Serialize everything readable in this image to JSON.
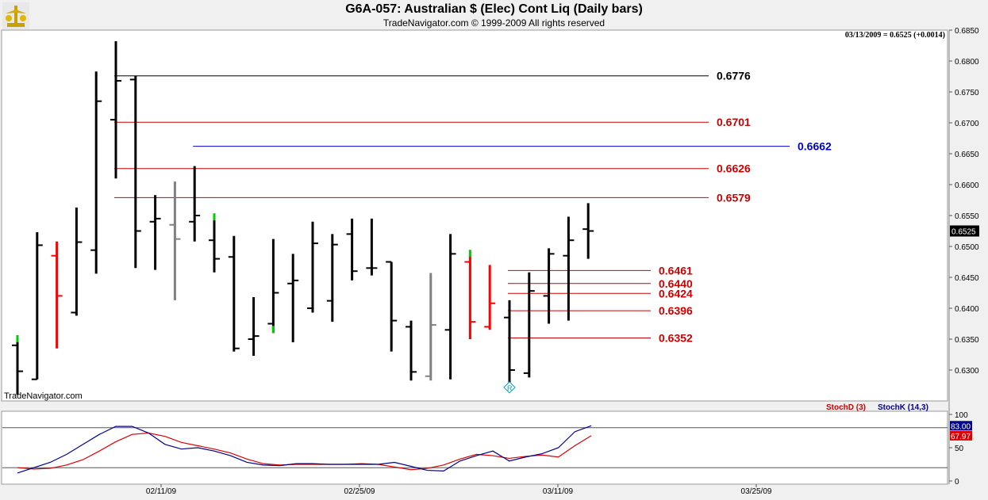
{
  "header": {
    "title": "G6A-057:  Australian $ (Elec) Cont Liq  (Daily bars)",
    "subtitle": "TradeNavigator.com © 1999-2009 All rights reserved",
    "readout": "03/13/2009 = 0.6525 (+0.0014)",
    "watermark": "TradeNavigator.com"
  },
  "chart_data": [
    {
      "type": "ohlc",
      "title": "G6A-057:  Australian $ (Elec) Cont Liq  (Daily bars)",
      "ylim": [
        0.625,
        0.685
      ],
      "yticks": [
        "0.6850",
        "0.6800",
        "0.6750",
        "0.6700",
        "0.6650",
        "0.6600",
        "0.6550",
        "0.6500",
        "0.6450",
        "0.6400",
        "0.6350",
        "0.6300"
      ],
      "xticks": [
        "02/11/09",
        "02/25/09",
        "03/11/09",
        "03/25/09"
      ],
      "last_price_label": "0.6525",
      "colors": {
        "up": "#000000",
        "down_marker": "#00cc00",
        "red": "#ff0000",
        "gray": "#808080",
        "last_bg": "#000000"
      },
      "bars": [
        {
          "o": 0.634,
          "h": 0.6352,
          "l": 0.626,
          "c": 0.6298,
          "color": "#000000"
        },
        {
          "o": 0.6285,
          "h": 0.6523,
          "l": 0.6285,
          "c": 0.6502,
          "color": "#000000"
        },
        {
          "o": 0.6485,
          "h": 0.6508,
          "l": 0.6335,
          "c": 0.642,
          "color": "#ff0000"
        },
        {
          "o": 0.6393,
          "h": 0.6563,
          "l": 0.6388,
          "c": 0.6507,
          "color": "#000000"
        },
        {
          "o": 0.6494,
          "h": 0.6783,
          "l": 0.6456,
          "c": 0.6735,
          "color": "#000000"
        },
        {
          "o": 0.6705,
          "h": 0.6832,
          "l": 0.661,
          "c": 0.6768,
          "color": "#000000"
        },
        {
          "o": 0.677,
          "h": 0.6776,
          "l": 0.6465,
          "c": 0.6525,
          "color": "#000000"
        },
        {
          "o": 0.654,
          "h": 0.6583,
          "l": 0.6462,
          "c": 0.6545,
          "color": "#000000"
        },
        {
          "o": 0.6535,
          "h": 0.6605,
          "l": 0.6413,
          "c": 0.6512,
          "color": "#808080"
        },
        {
          "o": 0.654,
          "h": 0.663,
          "l": 0.6508,
          "c": 0.655,
          "color": "#000000"
        },
        {
          "o": 0.651,
          "h": 0.6552,
          "l": 0.6458,
          "c": 0.648,
          "color": "#000000"
        },
        {
          "o": 0.6483,
          "h": 0.6517,
          "l": 0.633,
          "c": 0.6335,
          "color": "#000000"
        },
        {
          "o": 0.635,
          "h": 0.6418,
          "l": 0.6323,
          "c": 0.6355,
          "color": "#000000"
        },
        {
          "o": 0.6375,
          "h": 0.6512,
          "l": 0.636,
          "c": 0.6425,
          "color": "#000000"
        },
        {
          "o": 0.644,
          "h": 0.6488,
          "l": 0.6345,
          "c": 0.6445,
          "color": "#000000"
        },
        {
          "o": 0.64,
          "h": 0.654,
          "l": 0.6393,
          "c": 0.6505,
          "color": "#000000"
        },
        {
          "o": 0.6412,
          "h": 0.652,
          "l": 0.6378,
          "c": 0.6503,
          "color": "#000000"
        },
        {
          "o": 0.652,
          "h": 0.6545,
          "l": 0.6445,
          "c": 0.646,
          "color": "#000000"
        },
        {
          "o": 0.6465,
          "h": 0.6545,
          "l": 0.6453,
          "c": 0.6465,
          "color": "#000000"
        },
        {
          "o": 0.6475,
          "h": 0.6475,
          "l": 0.633,
          "c": 0.638,
          "color": "#000000"
        },
        {
          "o": 0.637,
          "h": 0.638,
          "l": 0.6283,
          "c": 0.6297,
          "color": "#000000"
        },
        {
          "o": 0.629,
          "h": 0.6457,
          "l": 0.6283,
          "c": 0.6373,
          "color": "#808080"
        },
        {
          "o": 0.6365,
          "h": 0.652,
          "l": 0.6285,
          "c": 0.6488,
          "color": "#000000"
        },
        {
          "o": 0.6475,
          "h": 0.6485,
          "l": 0.635,
          "c": 0.6378,
          "color": "#ff0000"
        },
        {
          "o": 0.637,
          "h": 0.647,
          "l": 0.6365,
          "c": 0.6408,
          "color": "#ff0000"
        },
        {
          "o": 0.6385,
          "h": 0.6413,
          "l": 0.6278,
          "c": 0.63,
          "color": "#000000"
        },
        {
          "o": 0.6295,
          "h": 0.6458,
          "l": 0.6288,
          "c": 0.6428,
          "color": "#000000"
        },
        {
          "o": 0.642,
          "h": 0.6497,
          "l": 0.6375,
          "c": 0.6488,
          "color": "#000000"
        },
        {
          "o": 0.6485,
          "h": 0.6548,
          "l": 0.638,
          "c": 0.651,
          "color": "#000000"
        },
        {
          "o": 0.6528,
          "h": 0.657,
          "l": 0.648,
          "c": 0.6525,
          "color": "#000000"
        }
      ],
      "green_marks": [
        {
          "bar": 0,
          "y": 0.6345
        },
        {
          "bar": 10,
          "y": 0.6542
        },
        {
          "bar": 13,
          "y": 0.636
        },
        {
          "bar": 23,
          "y": 0.6483
        }
      ],
      "levels": [
        {
          "value": 0.6776,
          "label": "0.6776",
          "color": "#000000",
          "start_bar": 5
        },
        {
          "value": 0.6701,
          "label": "0.6701",
          "color": "#cc0000",
          "start_bar": 5
        },
        {
          "value": 0.6662,
          "label": "0.6662",
          "color": "#0000cc",
          "start_bar": 9
        },
        {
          "value": 0.6626,
          "label": "0.6626",
          "color": "#cc0000",
          "start_bar": 5
        },
        {
          "value": 0.6579,
          "label": "0.6579",
          "color": "#cc0000",
          "start_bar": 5
        },
        {
          "value": 0.6461,
          "label": "0.6461",
          "color": "#cc0000",
          "start_bar": 25
        },
        {
          "value": 0.644,
          "label": "0.6440",
          "color": "#cc0000",
          "start_bar": 25
        },
        {
          "value": 0.6424,
          "label": "0.6424",
          "color": "#cc0000",
          "start_bar": 25
        },
        {
          "value": 0.6396,
          "label": "0.6396",
          "color": "#cc0000",
          "start_bar": 25
        },
        {
          "value": 0.6352,
          "label": "0.6352",
          "color": "#cc0000",
          "start_bar": 25
        }
      ],
      "reversal_marker": {
        "bar": 25,
        "y": 0.6272,
        "label": "R"
      }
    },
    {
      "type": "line",
      "title": "",
      "ylim": [
        0,
        100
      ],
      "yticks": [
        "100",
        "50",
        "0"
      ],
      "reference_lines": [
        80,
        20
      ],
      "series": [
        {
          "name": "StochD (3)",
          "color": "#dd0000",
          "last_label": "67.97",
          "values": [
            20,
            18,
            19,
            24,
            32,
            45,
            59,
            70,
            72,
            67,
            58,
            53,
            48,
            42,
            33,
            26,
            24,
            25,
            25,
            25,
            25,
            26,
            25,
            21,
            17,
            19,
            24,
            33,
            40,
            38,
            34,
            37,
            39,
            36,
            53,
            68
          ]
        },
        {
          "name": "StochK (14,3)",
          "color": "#00008b",
          "last_label": "83.00",
          "values": [
            12,
            20,
            28,
            40,
            55,
            70,
            82,
            82,
            72,
            55,
            48,
            50,
            45,
            38,
            28,
            24,
            23,
            26,
            26,
            25,
            25,
            25,
            25,
            28,
            22,
            16,
            15,
            30,
            38,
            45,
            30,
            36,
            41,
            50,
            74,
            83
          ]
        }
      ]
    }
  ]
}
